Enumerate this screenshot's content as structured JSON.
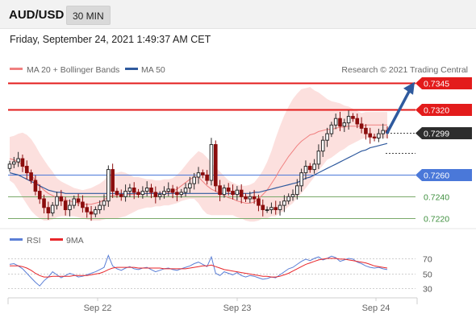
{
  "header": {
    "symbol": "AUD/USD",
    "timeframe": "30 MIN",
    "datetime": "Friday, September 24, 2021 1:49:37 AM CET"
  },
  "legend": {
    "ma20": {
      "label": "MA 20 + Bollinger Bands",
      "color": "#f08080"
    },
    "ma50": {
      "label": "MA 50",
      "color": "#2f5a9e"
    },
    "credit": "Research © 2021 Trading Central"
  },
  "rsi_legend": {
    "rsi": {
      "label": "RSI",
      "color": "#5b7fd6"
    },
    "ma9": {
      "label": "9MA",
      "color": "#e8262a"
    }
  },
  "colors": {
    "resistance": "#e31b1b",
    "support_main": "#4a78d9",
    "support_minor": "#7aa96a",
    "current": "#2d2d2d",
    "arrow": "#2f5a9e",
    "bull_candle": "#2a2a2a",
    "bear_candle": "#8b0d0d",
    "band_fill": "#fbd5d3"
  },
  "chart_data": {
    "type": "candlestick",
    "x_labels": [
      "Sep 22",
      "Sep 23",
      "Sep 24"
    ],
    "y_range": [
      0.7215,
      0.735
    ],
    "levels": [
      {
        "value": "0.7345",
        "type": "resistance"
      },
      {
        "value": "0.7320",
        "type": "resistance"
      },
      {
        "value": "0.7299",
        "type": "current"
      },
      {
        "value": "0.7260",
        "type": "support_main"
      },
      {
        "value": "0.7240",
        "type": "support_minor"
      },
      {
        "value": "0.7220",
        "type": "support_minor"
      }
    ],
    "target": 0.7345,
    "closes": [
      0.727,
      0.7272,
      0.7275,
      0.7268,
      0.7262,
      0.7255,
      0.7245,
      0.7238,
      0.723,
      0.7225,
      0.7232,
      0.724,
      0.7236,
      0.7228,
      0.7232,
      0.7238,
      0.7235,
      0.723,
      0.7226,
      0.7224,
      0.7228,
      0.7232,
      0.7236,
      0.7265,
      0.7245,
      0.7242,
      0.724,
      0.7245,
      0.7248,
      0.7244,
      0.7242,
      0.7245,
      0.7248,
      0.7244,
      0.724,
      0.7242,
      0.7245,
      0.7247,
      0.7244,
      0.7242,
      0.7244,
      0.7248,
      0.7252,
      0.7258,
      0.7262,
      0.726,
      0.7255,
      0.7288,
      0.725,
      0.7242,
      0.7248,
      0.7245,
      0.7242,
      0.7246,
      0.724,
      0.7238,
      0.724,
      0.7238,
      0.7232,
      0.7228,
      0.7228,
      0.723,
      0.7228,
      0.7232,
      0.7236,
      0.724,
      0.7242,
      0.725,
      0.7262,
      0.7268,
      0.7265,
      0.727,
      0.7282,
      0.7292,
      0.7298,
      0.7306,
      0.7312,
      0.7305,
      0.7308,
      0.7314,
      0.7312,
      0.7307,
      0.7303,
      0.7298,
      0.7295,
      0.7294,
      0.7298,
      0.7301,
      0.7299
    ],
    "ma20": [
      0.7275,
      0.7274,
      0.7272,
      0.7269,
      0.7265,
      0.726,
      0.7255,
      0.725,
      0.7246,
      0.7243,
      0.7241,
      0.7239,
      0.7238,
      0.7237,
      0.7236,
      0.7235,
      0.7234,
      0.7233,
      0.7233,
      0.7233,
      0.7234,
      0.7235,
      0.7237,
      0.724,
      0.7241,
      0.7241,
      0.7242,
      0.7242,
      0.7242,
      0.7242,
      0.7243,
      0.7243,
      0.7243,
      0.7243,
      0.7243,
      0.7243,
      0.7244,
      0.7244,
      0.7245,
      0.7247,
      0.725,
      0.7253,
      0.7256,
      0.7258,
      0.7258,
      0.7254,
      0.725,
      0.7247,
      0.7245,
      0.7243,
      0.7241,
      0.7239,
      0.7238,
      0.7236,
      0.7235,
      0.7234,
      0.7234,
      0.7235,
      0.7238,
      0.7242,
      0.7246,
      0.7252,
      0.7258,
      0.7265,
      0.7271,
      0.7277,
      0.7282,
      0.7287,
      0.7291,
      0.7294,
      0.7297,
      0.7298,
      0.73,
      0.7301,
      0.7302,
      0.7302,
      0.7303,
      0.7304,
      0.7304,
      0.7305,
      0.7305,
      0.7305,
      0.7305,
      0.7306,
      0.7306,
      0.7306,
      0.7306,
      0.7306,
      0.7306
    ],
    "ma50": [
      0.7262,
      0.7261,
      0.726,
      0.7258,
      0.7256,
      0.7254,
      0.7252,
      0.725,
      0.7248,
      0.7246,
      0.7245,
      0.7244,
      0.7244,
      0.7243,
      0.7243,
      0.7243,
      0.7243,
      0.7243,
      0.7243,
      0.7243,
      0.7243,
      0.7243,
      0.7243,
      0.7243,
      0.7243,
      0.7243,
      0.7243,
      0.7243,
      0.7243,
      0.7243,
      0.7243,
      0.7243,
      0.7243,
      0.7243,
      0.7243,
      0.7243,
      0.7243,
      0.7243,
      0.7243,
      0.7243,
      0.7243,
      0.7243,
      0.7243,
      0.7243,
      0.7243,
      0.7243,
      0.7243,
      0.7243,
      0.7243,
      0.7243,
      0.7243,
      0.7243,
      0.7243,
      0.7243,
      0.7243,
      0.7243,
      0.7243,
      0.7244,
      0.7244,
      0.7245,
      0.7246,
      0.7247,
      0.7248,
      0.7249,
      0.725,
      0.7251,
      0.7252,
      0.7253,
      0.7255,
      0.7257,
      0.7258,
      0.726,
      0.7262,
      0.7264,
      0.7266,
      0.7268,
      0.727,
      0.7272,
      0.7274,
      0.7276,
      0.7278,
      0.728,
      0.7282,
      0.7283,
      0.7285,
      0.7286,
      0.7287,
      0.7288,
      0.7289
    ],
    "band_width": [
      0.002,
      0.0022,
      0.0026,
      0.003,
      0.0032,
      0.0033,
      0.0032,
      0.003,
      0.0028,
      0.0025,
      0.0022,
      0.0018,
      0.0016,
      0.0015,
      0.0014,
      0.0013,
      0.0013,
      0.0013,
      0.0014,
      0.0015,
      0.0016,
      0.0017,
      0.0018,
      0.002,
      0.0021,
      0.0021,
      0.0021,
      0.002,
      0.0018,
      0.0016,
      0.0015,
      0.0014,
      0.0013,
      0.0013,
      0.0012,
      0.0012,
      0.0012,
      0.0012,
      0.0012,
      0.0013,
      0.0014,
      0.0016,
      0.0018,
      0.002,
      0.0024,
      0.0026,
      0.0026,
      0.0024,
      0.0022,
      0.002,
      0.0018,
      0.0016,
      0.0015,
      0.0015,
      0.0015,
      0.0016,
      0.0017,
      0.0018,
      0.002,
      0.0022,
      0.0026,
      0.003,
      0.0036,
      0.004,
      0.0044,
      0.0046,
      0.0048,
      0.0048,
      0.0048,
      0.0046,
      0.0044,
      0.004,
      0.0036,
      0.0032,
      0.0028,
      0.0026,
      0.0024,
      0.0022,
      0.002,
      0.0018,
      0.0016,
      0.0014,
      0.0012,
      0.0012,
      0.0012,
      0.0012,
      0.0012,
      0.0012,
      0.0012
    ],
    "rsi": {
      "ticks": [
        70,
        50,
        30
      ],
      "values": [
        62,
        63,
        60,
        56,
        50,
        44,
        38,
        33,
        40,
        45,
        52,
        48,
        44,
        47,
        50,
        48,
        45,
        46,
        48,
        50,
        52,
        55,
        58,
        74,
        60,
        56,
        54,
        57,
        59,
        56,
        55,
        57,
        58,
        55,
        52,
        54,
        56,
        57,
        55,
        54,
        56,
        58,
        60,
        63,
        65,
        62,
        59,
        72,
        50,
        47,
        52,
        50,
        48,
        51,
        47,
        45,
        47,
        46,
        44,
        42,
        43,
        45,
        44,
        48,
        52,
        56,
        58,
        62,
        66,
        69,
        67,
        70,
        72,
        68,
        70,
        73,
        71,
        66,
        68,
        70,
        69,
        65,
        63,
        60,
        58,
        57,
        58,
        56,
        55
      ],
      "ma9": [
        60,
        60,
        60,
        59,
        57,
        54,
        50,
        47,
        45,
        45,
        46,
        46,
        46,
        46,
        46,
        47,
        47,
        47,
        47,
        48,
        49,
        50,
        52,
        55,
        57,
        58,
        58,
        58,
        58,
        58,
        57,
        57,
        57,
        57,
        57,
        57,
        56,
        56,
        56,
        56,
        56,
        56,
        57,
        58,
        59,
        60,
        60,
        61,
        59,
        57,
        55,
        54,
        53,
        52,
        51,
        50,
        49,
        48,
        47,
        46,
        46,
        45,
        45,
        46,
        48,
        50,
        53,
        56,
        59,
        62,
        64,
        66,
        68,
        69,
        70,
        70,
        70,
        69,
        69,
        68,
        67,
        66,
        65,
        64,
        62,
        60,
        59,
        58,
        57
      ]
    }
  }
}
